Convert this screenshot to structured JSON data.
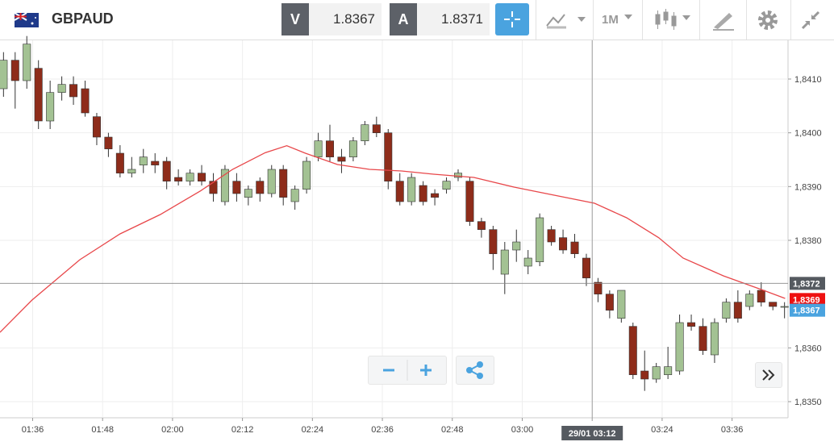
{
  "toolbar": {
    "symbol": "GBPAUD",
    "sell_label": "V",
    "sell_price": 1.8367,
    "buy_label": "A",
    "buy_price": 1.8371,
    "timeframe": "1M"
  },
  "chart_data": {
    "type": "candlestick",
    "xlim": [
      90.4,
      225.6
    ],
    "ylim": [
      1.8347,
      1.84172
    ],
    "xticks": [
      {
        "value": 96,
        "label": "01:36"
      },
      {
        "value": 108,
        "label": "01:48"
      },
      {
        "value": 120,
        "label": "02:00"
      },
      {
        "value": 132,
        "label": "02:12"
      },
      {
        "value": 144,
        "label": "02:24"
      },
      {
        "value": 156,
        "label": "02:36"
      },
      {
        "value": 168,
        "label": "02:48"
      },
      {
        "value": 180,
        "label": "03:00"
      },
      {
        "value": 192,
        "label": "03:12"
      },
      {
        "value": 204,
        "label": "03:24"
      },
      {
        "value": 216,
        "label": "03:36"
      }
    ],
    "yticks": [
      {
        "value": 1.841,
        "label": "1,8410"
      },
      {
        "value": 1.84,
        "label": "1,8400"
      },
      {
        "value": 1.839,
        "label": "1,8390"
      },
      {
        "value": 1.838,
        "label": "1,8380"
      },
      {
        "value": 1.836,
        "label": "1,8360"
      },
      {
        "value": 1.835,
        "label": "1,8350"
      }
    ],
    "grid": true,
    "up_color": "#a3c293",
    "down_color": "#8e2c1a",
    "candles": {
      "x": [
        91,
        93,
        95,
        97,
        99,
        101,
        103,
        105,
        107,
        109,
        111,
        113,
        115,
        117,
        119,
        121,
        123,
        125,
        127,
        129,
        131,
        133,
        135,
        137,
        139,
        141,
        143,
        145,
        147,
        149,
        151,
        153,
        155,
        157,
        159,
        161,
        163,
        165,
        167,
        169,
        171,
        173,
        175,
        177,
        179,
        181,
        183,
        185,
        187,
        189,
        191,
        193,
        195,
        197,
        199,
        201,
        203,
        205,
        207,
        209,
        211,
        213,
        215,
        217,
        219,
        221,
        223,
        225
      ],
      "open": [
        1.84082,
        1.84135,
        1.84097,
        1.8412,
        1.84022,
        1.84075,
        1.8409,
        1.84082,
        1.8403,
        1.83992,
        1.83962,
        1.83925,
        1.8394,
        1.83947,
        1.83947,
        1.83917,
        1.8391,
        1.83925,
        1.8391,
        1.83872,
        1.8391,
        1.8388,
        1.8391,
        1.83887,
        1.83932,
        1.83872,
        1.83895,
        1.83955,
        1.83985,
        1.83955,
        1.83955,
        1.83985,
        1.84015,
        1.84,
        1.8391,
        1.83872,
        1.83902,
        1.83887,
        1.83895,
        1.83917,
        1.8391,
        1.83835,
        1.8382,
        1.83737,
        1.83782,
        1.83752,
        1.8376,
        1.8382,
        1.83805,
        1.83797,
        1.83767,
        1.83722,
        1.837,
        1.83655,
        1.8364,
        1.83557,
        1.83542,
        1.8355,
        1.83557,
        1.83647,
        1.8364,
        1.83587,
        1.83655,
        1.83685,
        1.83677,
        1.83707,
        1.83685,
        1.83677
      ],
      "high": [
        1.8415,
        1.8415,
        1.8418,
        1.84135,
        1.84097,
        1.84105,
        1.84105,
        1.84097,
        1.84037,
        1.84,
        1.83977,
        1.83955,
        1.8397,
        1.83962,
        1.83955,
        1.83932,
        1.83932,
        1.8394,
        1.83925,
        1.8394,
        1.83925,
        1.83902,
        1.83917,
        1.8394,
        1.8394,
        1.83902,
        1.83955,
        1.84,
        1.84015,
        1.8397,
        1.83992,
        1.84022,
        1.8403,
        1.84007,
        1.83925,
        1.83925,
        1.8391,
        1.83895,
        1.83917,
        1.83932,
        1.83917,
        1.83842,
        1.83827,
        1.83797,
        1.8382,
        1.83782,
        1.8385,
        1.83827,
        1.8382,
        1.83812,
        1.83775,
        1.8373,
        1.83707,
        1.83707,
        1.83647,
        1.83595,
        1.83572,
        1.83602,
        1.83662,
        1.83662,
        1.83655,
        1.83655,
        1.83692,
        1.83707,
        1.83707,
        1.83722,
        1.83685,
        1.83685
      ],
      "low": [
        1.84067,
        1.84045,
        1.84082,
        1.84007,
        1.84007,
        1.8406,
        1.84052,
        1.8403,
        1.83977,
        1.83955,
        1.83917,
        1.83917,
        1.83925,
        1.83925,
        1.83895,
        1.83902,
        1.83902,
        1.83902,
        1.83872,
        1.83865,
        1.83872,
        1.83865,
        1.83872,
        1.8388,
        1.83865,
        1.83857,
        1.83887,
        1.83947,
        1.83947,
        1.83925,
        1.83947,
        1.83977,
        1.83992,
        1.83895,
        1.83865,
        1.83865,
        1.83865,
        1.83865,
        1.83887,
        1.8391,
        1.83827,
        1.83805,
        1.83745,
        1.837,
        1.8376,
        1.83737,
        1.83752,
        1.8379,
        1.83775,
        1.83767,
        1.83715,
        1.83685,
        1.83655,
        1.83647,
        1.83542,
        1.8352,
        1.83535,
        1.83542,
        1.8355,
        1.83632,
        1.83587,
        1.83572,
        1.83647,
        1.83647,
        1.8367,
        1.83677,
        1.8367,
        1.83655
      ],
      "close": [
        1.84135,
        1.84097,
        1.84165,
        1.84022,
        1.84075,
        1.8409,
        1.84067,
        1.84037,
        1.83992,
        1.8397,
        1.83925,
        1.83932,
        1.83955,
        1.8394,
        1.8391,
        1.8391,
        1.83925,
        1.8391,
        1.83887,
        1.83932,
        1.83887,
        1.83895,
        1.83887,
        1.83932,
        1.8388,
        1.83895,
        1.83947,
        1.83985,
        1.83955,
        1.83947,
        1.83985,
        1.84015,
        1.84,
        1.8391,
        1.83872,
        1.83917,
        1.83872,
        1.8388,
        1.8391,
        1.83925,
        1.83835,
        1.8382,
        1.83775,
        1.83782,
        1.83797,
        1.83767,
        1.83842,
        1.83797,
        1.83782,
        1.83775,
        1.8373,
        1.837,
        1.8367,
        1.83707,
        1.8355,
        1.83542,
        1.83565,
        1.83565,
        1.83647,
        1.8364,
        1.83595,
        1.83647,
        1.83685,
        1.83655,
        1.837,
        1.83685,
        1.83677,
        1.83677
      ]
    },
    "moving_average": {
      "color": "#e8474a",
      "x": [
        90.4,
        95.9,
        104.1,
        111,
        117.9,
        124.8,
        130.3,
        135.9,
        139.6,
        142.8,
        148.3,
        153.8,
        159.3,
        164.8,
        171.7,
        178.6,
        184.1,
        192.4,
        197.9,
        203.4,
        207.6,
        214.5,
        221.4,
        225.1
      ],
      "values": [
        1.83629,
        1.83689,
        1.83764,
        1.83812,
        1.83848,
        1.83892,
        1.83932,
        1.83963,
        1.83976,
        1.83962,
        1.83941,
        1.83932,
        1.83929,
        1.83923,
        1.83917,
        1.83899,
        1.83887,
        1.83869,
        1.83842,
        1.83805,
        1.83767,
        1.83734,
        1.83707,
        1.83692
      ]
    },
    "crosshair": {
      "value": 192,
      "label": "29/01 03:12"
    },
    "price_markers": [
      {
        "value": 1.8372,
        "label": "1,8372",
        "color": "#555a60"
      },
      {
        "value": 1.8369,
        "label": "1,8369",
        "color": "#ee1111"
      },
      {
        "value": 1.8367,
        "label": "1,8367",
        "color": "#4aa3df"
      }
    ]
  }
}
